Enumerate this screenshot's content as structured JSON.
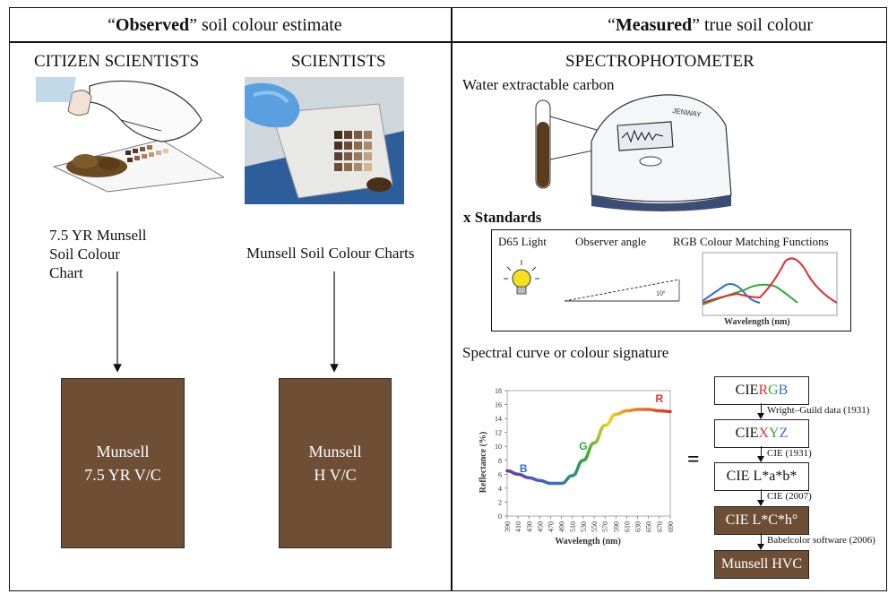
{
  "header": {
    "left_quote_bold": "Observed",
    "left_rest": " soil colour estimate",
    "right_quote_bold": "Measured",
    "right_rest": " true soil colour"
  },
  "left": {
    "citizen_title": "CITIZEN SCIENTISTS",
    "scientist_title": "SCIENTISTS",
    "citizen_chart_label": [
      "7.5 YR Munsell",
      "Soil Colour",
      "Chart"
    ],
    "scientist_chart_label": "Munsell Soil Colour Charts",
    "citizen_box": [
      "Munsell",
      "7.5 YR V/C"
    ],
    "scientist_box": [
      "Munsell",
      "H V/C"
    ]
  },
  "right": {
    "title": "SPECTROPHOTOMETER",
    "water_label": "Water extractable carbon",
    "device_brand": "JENWAY",
    "standards_label": "x Standards",
    "std_d65": "D65 Light",
    "std_observer": "Observer angle",
    "std_angle_value": "10º",
    "std_rgb": "RGB Colour Matching Functions",
    "std_wavelength": "Wavelength  (nm)",
    "spectral_label": "Spectral curve or colour signature",
    "equals": "=",
    "flow": [
      {
        "text_parts": [
          {
            "t": "CIE ",
            "c": "#111111"
          },
          {
            "t": "R",
            "c": "#e03030"
          },
          {
            "t": "G",
            "c": "#2eaa3c"
          },
          {
            "t": "B",
            "c": "#2f6fd0"
          }
        ],
        "dark": false
      },
      {
        "text_parts": [
          {
            "t": "CIE ",
            "c": "#111111"
          },
          {
            "t": "X",
            "c": "#e03030"
          },
          {
            "t": "Y",
            "c": "#2eaa3c"
          },
          {
            "t": "Z",
            "c": "#2f6fd0"
          }
        ],
        "dark": false
      },
      {
        "text_parts": [
          {
            "t": "CIE L*a*b*",
            "c": "#111111"
          }
        ],
        "dark": false
      },
      {
        "text_parts": [
          {
            "t": "CIE L*C*h°",
            "c": "#ffffff"
          }
        ],
        "dark": true
      },
      {
        "text_parts": [
          {
            "t": "Munsell HVC",
            "c": "#ffffff"
          }
        ],
        "dark": true
      }
    ],
    "flow_arrows": [
      "Wright–Guild data (1931)",
      "CIE (1931)",
      "CIE (2007)",
      "Babelcolor software (2006)"
    ]
  },
  "chart_data": {
    "type": "line",
    "title": "",
    "xlabel": "Wavelength (nm)",
    "ylabel": "Reflectance (%)",
    "x": [
      390,
      410,
      430,
      450,
      470,
      490,
      510,
      530,
      550,
      570,
      590,
      610,
      630,
      650,
      670,
      690
    ],
    "ylim": [
      0,
      18
    ],
    "yticks": [
      0,
      2,
      4,
      6,
      8,
      10,
      12,
      14,
      16,
      18
    ],
    "series": [
      {
        "values": [
          6.5,
          6.0,
          5.5,
          5.1,
          4.7,
          4.7,
          5.8,
          8.0,
          10.5,
          13.0,
          14.6,
          15.1,
          15.3,
          15.3,
          15.1,
          15.0
        ]
      }
    ],
    "annotations": [
      {
        "text": "B",
        "x": 420,
        "y": 6.3,
        "color": "#2f6fd0"
      },
      {
        "text": "G",
        "x": 530,
        "y": 9.5,
        "color": "#2eaa3c"
      },
      {
        "text": "R",
        "x": 670,
        "y": 16.3,
        "color": "#e03030"
      }
    ],
    "grid": false,
    "colors": {
      "violet": "#6a3ea1",
      "blue": "#2f6fd0",
      "green": "#2eaa3c",
      "yellow": "#f2d21b",
      "orange": "#f08a1c",
      "red": "#e03030"
    }
  },
  "colors": {
    "soil_brown": "#6e4e35",
    "cmf_red": "#e03030",
    "cmf_green": "#2eaa3c",
    "cmf_blue": "#2f6fd0"
  }
}
